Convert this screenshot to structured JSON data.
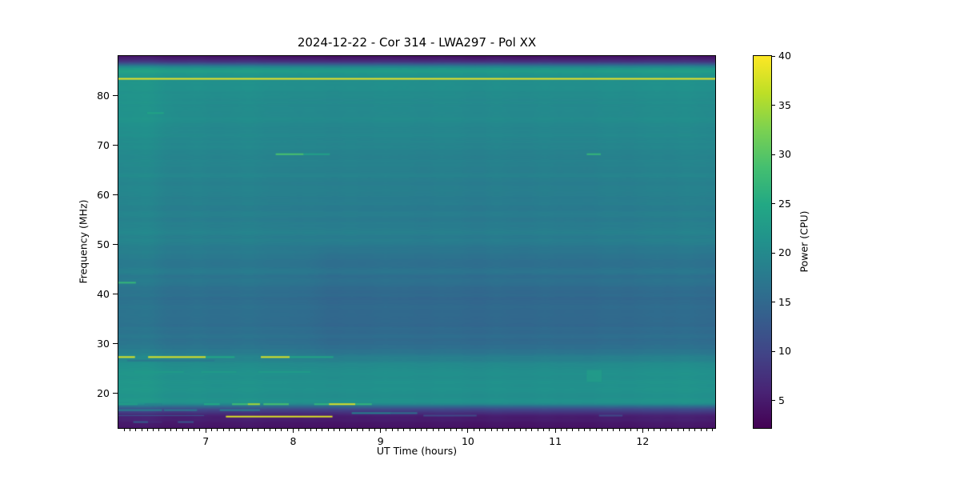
{
  "chart_data": {
    "type": "heatmap",
    "title": "2024-12-22 - Cor 314 - LWA297 - Pol XX",
    "xlabel": "UT Time (hours)",
    "ylabel": "Frequency (MHz)",
    "x_range_hours": [
      6.0,
      12.83
    ],
    "y_range_mhz": [
      13,
      88
    ],
    "x_ticks": [
      7,
      8,
      9,
      10,
      11,
      12
    ],
    "x_minor_per_hour": 15,
    "y_ticks": [
      20,
      30,
      40,
      50,
      60,
      70,
      80
    ],
    "grid": false,
    "colorbar": {
      "label": "Power (CPU)",
      "ticks": [
        5,
        10,
        15,
        20,
        25,
        30,
        35,
        40
      ],
      "vmin": 2.2,
      "vmax": 40
    },
    "colormap": {
      "name": "viridis",
      "anchors": [
        [
          0.0,
          "#440154"
        ],
        [
          0.1,
          "#482475"
        ],
        [
          0.2,
          "#414487"
        ],
        [
          0.3,
          "#355f8d"
        ],
        [
          0.4,
          "#2a788e"
        ],
        [
          0.5,
          "#21918c"
        ],
        [
          0.6,
          "#22a884"
        ],
        [
          0.7,
          "#44bf70"
        ],
        [
          0.8,
          "#7ad151"
        ],
        [
          0.9,
          "#bddf26"
        ],
        [
          1.0,
          "#fde725"
        ]
      ]
    },
    "background_profile_mhz_power": [
      [
        13,
        4.2
      ],
      [
        14,
        4.6
      ],
      [
        15,
        5.5
      ],
      [
        15.6,
        6.5
      ],
      [
        16.2,
        8.5
      ],
      [
        16.8,
        11
      ],
      [
        17.3,
        15
      ],
      [
        17.8,
        19.5
      ],
      [
        18.3,
        21.6
      ],
      [
        19,
        21.5
      ],
      [
        20,
        21.1
      ],
      [
        21,
        21.3
      ],
      [
        22,
        21.4
      ],
      [
        23,
        21.0
      ],
      [
        24,
        21.2
      ],
      [
        25,
        20.6
      ],
      [
        26,
        20.0
      ],
      [
        27,
        19.3
      ],
      [
        28,
        18.4
      ],
      [
        29,
        17.3
      ],
      [
        30,
        16.6
      ],
      [
        32,
        16.2
      ],
      [
        34,
        16.0
      ],
      [
        36,
        16.0
      ],
      [
        38,
        15.8
      ],
      [
        40,
        16.0
      ],
      [
        41.5,
        16.2
      ],
      [
        42.5,
        17.0
      ],
      [
        43.5,
        16.8
      ],
      [
        44.5,
        17.6
      ],
      [
        45.5,
        17.1
      ],
      [
        47,
        17.2
      ],
      [
        49,
        17.8
      ],
      [
        51,
        18.6
      ],
      [
        52.5,
        18.7
      ],
      [
        54,
        18.2
      ],
      [
        56,
        18.4
      ],
      [
        58,
        18.3
      ],
      [
        60,
        18.8
      ],
      [
        62,
        18.8
      ],
      [
        64,
        19.0
      ],
      [
        66,
        19.1
      ],
      [
        68,
        19.2
      ],
      [
        70,
        19.6
      ],
      [
        72,
        19.6
      ],
      [
        74,
        20.0
      ],
      [
        76,
        20.3
      ],
      [
        78,
        20.2
      ],
      [
        80,
        20.6
      ],
      [
        82,
        21.0
      ],
      [
        83.6,
        21.0
      ],
      [
        84.3,
        22.0
      ],
      [
        84.9,
        23.5
      ],
      [
        85.4,
        22.3
      ],
      [
        85.9,
        18.5
      ],
      [
        86.3,
        13.5
      ],
      [
        86.8,
        8.5
      ],
      [
        87.4,
        5.2
      ],
      [
        88,
        4.0
      ]
    ],
    "region_adjustments": [
      {
        "f_min": 28,
        "f_max": 48,
        "t_min": 8.4,
        "t_max": 12.83,
        "delta": -0.65
      },
      {
        "f_min": 16,
        "f_max": 86,
        "t_min": 6.0,
        "t_max": 6.33,
        "delta": 0.5
      },
      {
        "f_min": 73,
        "f_max": 79,
        "t_min": 6.0,
        "t_max": 6.6,
        "delta": 0.4
      },
      {
        "f_min": 50,
        "f_max": 70,
        "t_min": 9.0,
        "t_max": 12.4,
        "delta": -0.25
      }
    ],
    "noise": {
      "row_seed": 11,
      "row_amp": 0.55,
      "col_seed": 23,
      "col_amp": 0.3,
      "col_amp2": 0.35
    },
    "features": [
      {
        "name": "bright-line",
        "f": 83.4,
        "t0": 6.0,
        "t1": 12.83,
        "p": 39,
        "h": 2
      },
      {
        "name": "faint-dash",
        "f": 76.5,
        "t0": 6.33,
        "t1": 6.52,
        "p": 24,
        "h": 2
      },
      {
        "name": "green-dash",
        "f": 68.2,
        "t0": 7.8,
        "t1": 8.12,
        "p": 29,
        "h": 2
      },
      {
        "name": "green-dash",
        "f": 68.2,
        "t0": 8.12,
        "t1": 8.42,
        "p": 23.5,
        "h": 2
      },
      {
        "name": "green-dash",
        "f": 68.2,
        "t0": 11.36,
        "t1": 11.52,
        "p": 27,
        "h": 2
      },
      {
        "name": "green-dash",
        "f": 42.3,
        "t0": 6.0,
        "t1": 6.2,
        "p": 27,
        "h": 2
      },
      {
        "name": "yellow-dash",
        "f": 27.3,
        "t0": 6.0,
        "t1": 6.19,
        "p": 38,
        "h": 2
      },
      {
        "name": "yellow-dash",
        "f": 27.3,
        "t0": 6.34,
        "t1": 7.0,
        "p": 38,
        "h": 2
      },
      {
        "name": "green-dash",
        "f": 27.3,
        "t0": 7.0,
        "t1": 7.33,
        "p": 24.5,
        "h": 2
      },
      {
        "name": "yellow-dash",
        "f": 27.3,
        "t0": 7.63,
        "t1": 7.96,
        "p": 38,
        "h": 2
      },
      {
        "name": "green-dash",
        "f": 27.3,
        "t0": 7.96,
        "t1": 8.46,
        "p": 24,
        "h": 2
      },
      {
        "name": "dark-dash",
        "f": 26.6,
        "t0": 6.1,
        "t1": 7.1,
        "p": 17.5,
        "h": 2
      },
      {
        "name": "faint-dash",
        "f": 24.3,
        "t0": 6.18,
        "t1": 6.75,
        "p": 22.5,
        "h": 2
      },
      {
        "name": "faint-dash",
        "f": 24.3,
        "t0": 6.95,
        "t1": 7.35,
        "p": 22.5,
        "h": 2
      },
      {
        "name": "faint-dash",
        "f": 24.3,
        "t0": 7.6,
        "t1": 8.2,
        "p": 22.5,
        "h": 2
      },
      {
        "name": "green-patch",
        "f": 24.7,
        "f_to": 22.3,
        "t0": 11.36,
        "t1": 11.53,
        "p": 24,
        "alpha": 0.55
      },
      {
        "name": "teal-dash",
        "f": 17.8,
        "t0": 6.0,
        "t1": 6.22,
        "p": 23,
        "h": 2
      },
      {
        "name": "faint-dash",
        "f": 17.8,
        "t0": 6.3,
        "t1": 6.5,
        "p": 19,
        "h": 2
      },
      {
        "name": "green-dash",
        "f": 17.8,
        "t0": 6.98,
        "t1": 7.16,
        "p": 25,
        "h": 2
      },
      {
        "name": "green-dash",
        "f": 17.8,
        "t0": 7.3,
        "t1": 7.48,
        "p": 28,
        "h": 2
      },
      {
        "name": "yellow-dash",
        "f": 17.8,
        "t0": 7.48,
        "t1": 7.62,
        "p": 35,
        "h": 2
      },
      {
        "name": "green-dash",
        "f": 17.8,
        "t0": 7.66,
        "t1": 7.95,
        "p": 29,
        "h": 2
      },
      {
        "name": "green-dash",
        "f": 17.8,
        "t0": 8.24,
        "t1": 8.41,
        "p": 27,
        "h": 2
      },
      {
        "name": "yellow-dash",
        "f": 17.8,
        "t0": 8.41,
        "t1": 8.71,
        "p": 38,
        "h": 2
      },
      {
        "name": "green-dash",
        "f": 17.8,
        "t0": 8.71,
        "t1": 8.9,
        "p": 27,
        "h": 2
      },
      {
        "name": "teal-dash",
        "f": 16.6,
        "t0": 6.0,
        "t1": 6.5,
        "p": 18,
        "h": 2
      },
      {
        "name": "teal-dash",
        "f": 16.6,
        "t0": 6.52,
        "t1": 6.9,
        "p": 17,
        "h": 2
      },
      {
        "name": "teal-dash",
        "f": 16.6,
        "t0": 7.16,
        "t1": 7.62,
        "p": 18,
        "h": 2
      },
      {
        "name": "teal-dash",
        "f": 16.0,
        "t0": 8.67,
        "t1": 9.12,
        "p": 18.5,
        "h": 2
      },
      {
        "name": "teal-dash",
        "f": 16.0,
        "t0": 9.12,
        "t1": 9.42,
        "p": 16,
        "h": 2
      },
      {
        "name": "yellow-line",
        "f": 15.3,
        "t0": 7.23,
        "t1": 8.45,
        "p": 38,
        "h": 2
      },
      {
        "name": "faint-dash",
        "f": 15.5,
        "t0": 9.49,
        "t1": 10.1,
        "p": 10.5,
        "h": 2
      },
      {
        "name": "faint-dash",
        "f": 15.5,
        "t0": 11.5,
        "t1": 11.77,
        "p": 10.5,
        "h": 2
      },
      {
        "name": "faint-dash",
        "f": 15.5,
        "t0": 6.0,
        "t1": 6.98,
        "p": 11.5,
        "h": 1
      },
      {
        "name": "teal-dash",
        "f": 14.2,
        "t0": 6.17,
        "t1": 6.34,
        "p": 13,
        "h": 2
      },
      {
        "name": "dark-dash",
        "f": 14.2,
        "t0": 6.34,
        "t1": 6.5,
        "p": 6.5,
        "h": 2
      },
      {
        "name": "teal-dash",
        "f": 14.2,
        "t0": 6.68,
        "t1": 6.86,
        "p": 12,
        "h": 2
      }
    ]
  }
}
